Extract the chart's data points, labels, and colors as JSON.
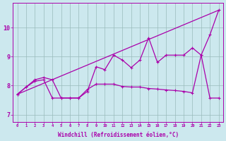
{
  "bg_color": "#cce8ee",
  "line_color": "#aa00aa",
  "grid_color": "#99bbbb",
  "xlim_min": -0.5,
  "xlim_max": 23.5,
  "ylim_min": 6.75,
  "ylim_max": 10.85,
  "xlabel": "Windchill (Refroidissement éolien,°C)",
  "ytick_values": [
    7,
    8,
    9,
    10
  ],
  "line1_x": [
    0,
    1,
    2,
    3,
    4,
    5,
    6,
    7,
    8,
    9,
    10,
    11,
    12,
    13,
    14,
    15,
    16,
    17,
    18,
    19,
    20,
    21,
    22,
    23
  ],
  "line1_y": [
    7.7,
    7.95,
    8.2,
    8.28,
    8.2,
    7.57,
    7.57,
    7.57,
    7.8,
    8.65,
    8.55,
    9.05,
    8.88,
    8.62,
    8.88,
    9.65,
    8.8,
    9.05,
    9.05,
    9.05,
    9.3,
    9.05,
    9.75,
    10.6
  ],
  "line2_x": [
    0,
    23
  ],
  "line2_y": [
    7.7,
    10.6
  ],
  "line3_x": [
    0,
    1,
    2,
    3,
    4,
    5,
    6,
    7,
    8,
    9,
    10,
    11,
    12,
    13,
    14,
    15,
    16,
    17,
    18,
    19,
    20,
    21,
    22,
    23
  ],
  "line3_y": [
    7.7,
    7.95,
    8.15,
    8.2,
    7.57,
    7.57,
    7.57,
    7.57,
    7.87,
    8.05,
    8.05,
    8.05,
    7.97,
    7.95,
    7.95,
    7.9,
    7.88,
    7.85,
    7.83,
    7.8,
    7.75,
    9.05,
    7.57,
    7.57
  ],
  "linewidth": 0.9,
  "markersize": 3.5,
  "marker": "+"
}
